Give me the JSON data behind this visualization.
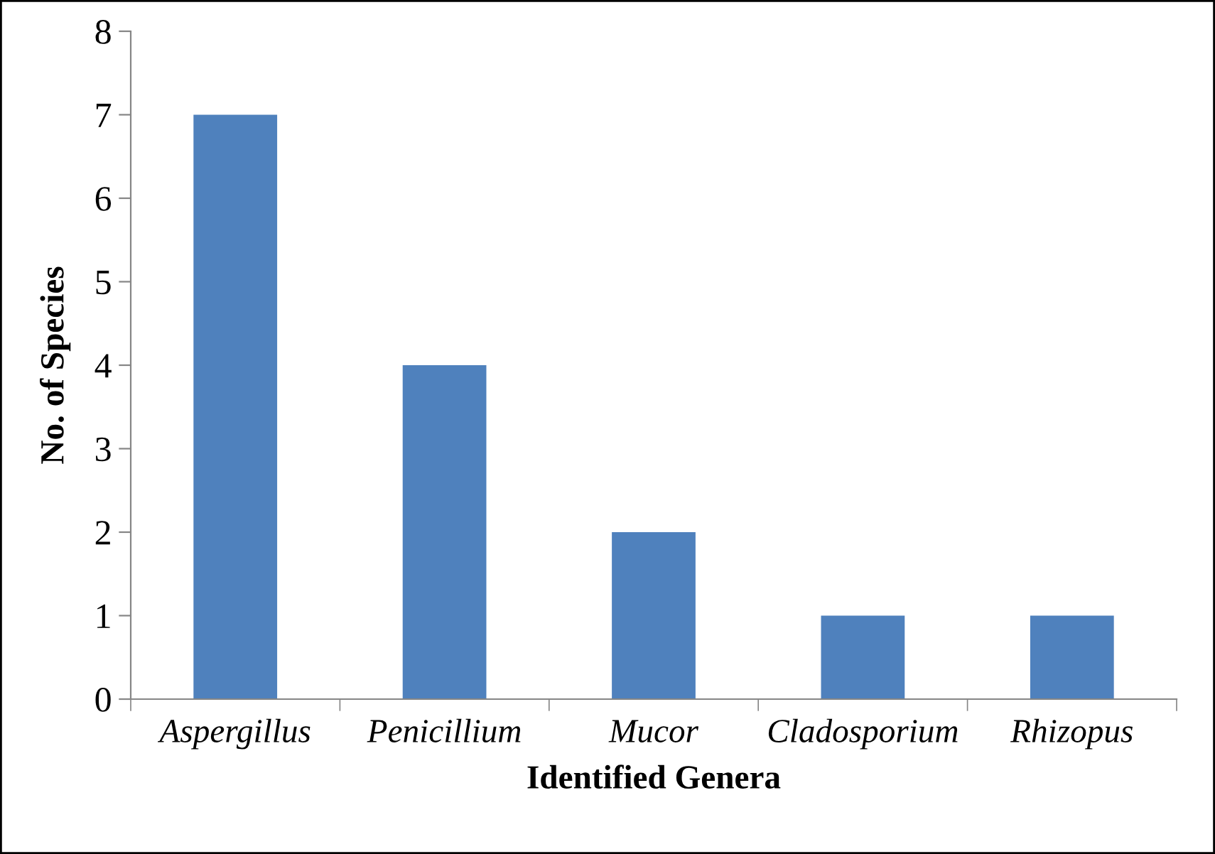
{
  "chart_data": {
    "type": "bar",
    "xlabel": "Identified Genera",
    "ylabel": "No. of Species",
    "categories": [
      "Aspergillus",
      "Penicillium",
      "Mucor",
      "Cladosporium",
      "Rhizopus"
    ],
    "values": [
      7,
      4,
      2,
      1,
      1
    ],
    "color": "#4f81bd",
    "ylim": [
      0,
      8
    ],
    "yticks": [
      0,
      1,
      2,
      3,
      4,
      5,
      6,
      7,
      8
    ],
    "grid": false,
    "legend": false
  }
}
